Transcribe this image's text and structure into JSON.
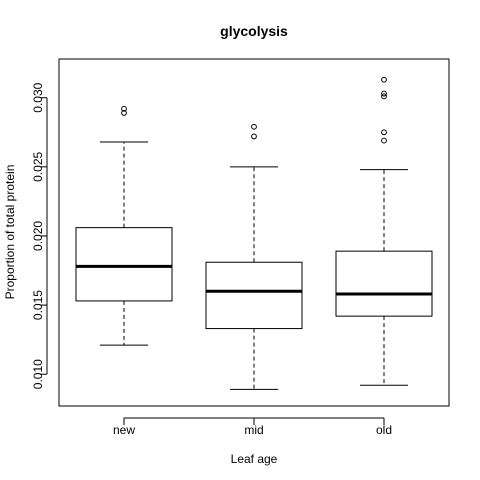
{
  "chart_data": {
    "type": "box",
    "title": "glycolysis",
    "xlabel": "Leaf age",
    "ylabel": "Proportion of total protein",
    "categories": [
      "new",
      "mid",
      "old"
    ],
    "ylim": [
      0.0077,
      0.0328
    ],
    "y_ticks": [
      0.01,
      0.015,
      0.02,
      0.025,
      0.03
    ],
    "y_tick_labels": [
      "0.010",
      "0.015",
      "0.020",
      "0.025",
      "0.030"
    ],
    "boxes": [
      {
        "category": "new",
        "whisker_low": 0.0121,
        "q1": 0.0153,
        "median": 0.0178,
        "q3": 0.0206,
        "whisker_high": 0.0268,
        "outliers": [
          0.0289,
          0.0292
        ]
      },
      {
        "category": "mid",
        "whisker_low": 0.0089,
        "q1": 0.0133,
        "median": 0.016,
        "q3": 0.0181,
        "whisker_high": 0.025,
        "outliers": [
          0.0272,
          0.0279
        ]
      },
      {
        "category": "old",
        "whisker_low": 0.0092,
        "q1": 0.0142,
        "median": 0.0158,
        "q3": 0.0189,
        "whisker_high": 0.0248,
        "outliers": [
          0.0269,
          0.0275,
          0.0301,
          0.0303,
          0.0313
        ]
      }
    ],
    "grid": false,
    "legend": "none"
  }
}
